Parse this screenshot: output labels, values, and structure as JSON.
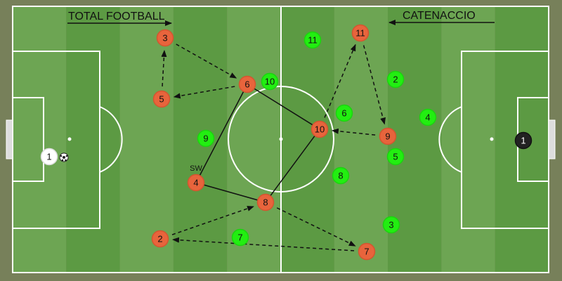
{
  "titles": {
    "left": "TOTAL FOOTBALL",
    "right": "CATENACCIO"
  },
  "role_label": "SW",
  "colors": {
    "pitch_light": "#6da553",
    "pitch_dark": "#5c9a43",
    "surround": "#77805a",
    "line": "#ffffff",
    "orange_team": "#e8643c",
    "green_team": "#22ee11",
    "keeper_left": "#ffffff",
    "keeper_right": "#222222"
  },
  "players": {
    "orange": [
      "3",
      "5",
      "6",
      "10",
      "11",
      "9",
      "4",
      "8",
      "2",
      "7"
    ],
    "green": [
      "11",
      "10",
      "2",
      "6",
      "4",
      "9",
      "5",
      "8",
      "3",
      "7"
    ],
    "keeper_left": "1",
    "keeper_right": "1"
  },
  "links": {
    "solid": [
      [
        "6",
        "4"
      ],
      [
        "6",
        "10"
      ],
      [
        "4",
        "8"
      ],
      [
        "8",
        "10"
      ]
    ],
    "dashed_arrows": [
      [
        "3",
        "6"
      ],
      [
        "6",
        "5"
      ],
      [
        "5",
        "3"
      ],
      [
        "10",
        "11"
      ],
      [
        "11",
        "9"
      ],
      [
        "9",
        "10"
      ],
      [
        "2",
        "8"
      ],
      [
        "8",
        "7"
      ],
      [
        "7",
        "2"
      ]
    ]
  },
  "icons": {
    "ball": "soccer-ball-icon"
  }
}
